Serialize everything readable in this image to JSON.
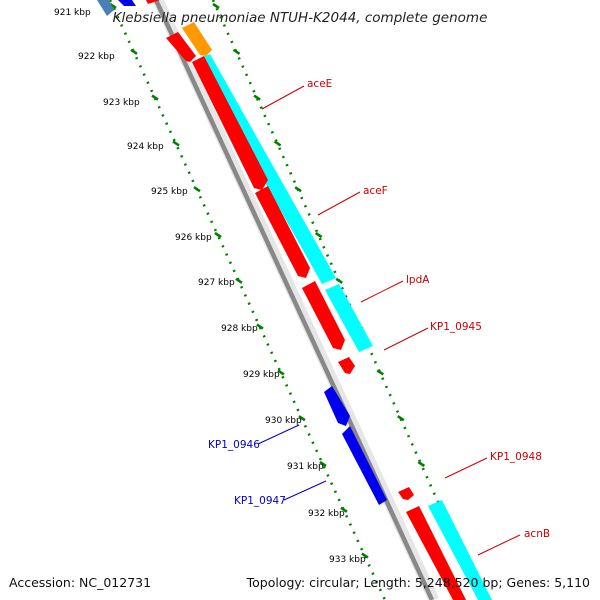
{
  "title": "Klebsiella pneumoniae NTUH-K2044, complete genome",
  "ticks": [
    "921 kbp",
    "922 kbp",
    "923 kbp",
    "924 kbp",
    "925 kbp",
    "926 kbp",
    "927 kbp",
    "928 kbp",
    "929 kbp",
    "930 kbp",
    "931 kbp",
    "932 kbp",
    "933 kbp"
  ],
  "genes": [
    {
      "name": "aceE",
      "color": "#cc0000"
    },
    {
      "name": "aceF",
      "color": "#cc0000"
    },
    {
      "name": "lpdA",
      "color": "#cc0000"
    },
    {
      "name": "KP1_0945",
      "color": "#cc0000"
    },
    {
      "name": "KP1_0946",
      "color": "#0000cc"
    },
    {
      "name": "KP1_0947",
      "color": "#0000cc"
    },
    {
      "name": "KP1_0948",
      "color": "#cc0000"
    },
    {
      "name": "acnB",
      "color": "#cc0000"
    }
  ],
  "footer": {
    "accession": "Accession: NC_012731",
    "topology": "Topology: circular; Length: 5,248,520 bp; Genes: 5,110"
  },
  "colors": {
    "forward_cds": "#ff0000",
    "reverse_cds": "#0000ee",
    "rna_track": "#00ffff",
    "backbone": "#888888",
    "tick_marks": "#008000",
    "other_feature": "#ff9900"
  }
}
